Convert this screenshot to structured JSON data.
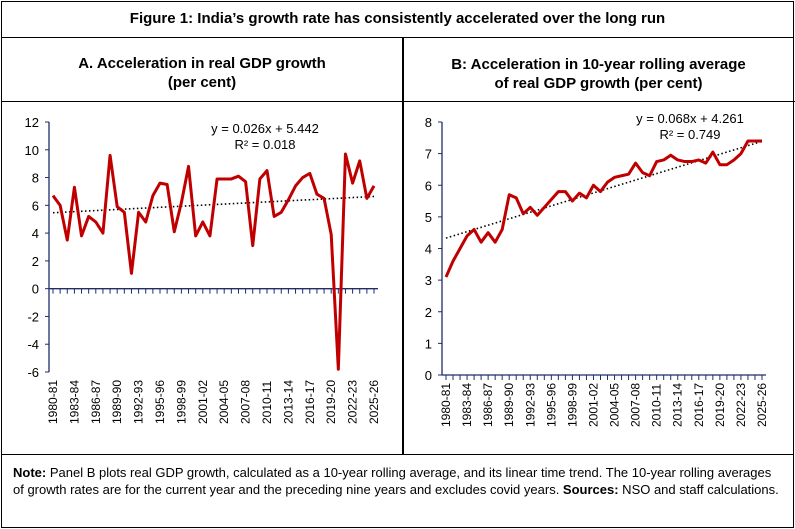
{
  "figure_title": "Figure 1: India’s growth rate has consistently accelerated over the long run",
  "note": {
    "note_label": "Note:",
    "note_text": " Panel B plots real GDP growth, calculated as a 10-year rolling average, and its linear time trend. The 10-year rolling averages of growth rates are for the current year and the preceding nine years and excludes covid years. ",
    "sources_label": "Sources:",
    "sources_text": " NSO and staff calculations."
  },
  "colors": {
    "series": "#C00000",
    "axis": "#1F2D6B",
    "trend": "#000000"
  },
  "chart_data": [
    {
      "type": "line",
      "title_line1": "A.  Acceleration in real GDP growth",
      "title_line2": "(per cent)",
      "ylim": [
        -6,
        12
      ],
      "yticks": [
        -6,
        -4,
        -2,
        0,
        2,
        4,
        6,
        8,
        10,
        12
      ],
      "grid": false,
      "equation": "y = 0.026x + 5.442",
      "r2": "R² = 0.018",
      "trend": {
        "slope": 0.026,
        "intercept": 5.442
      },
      "xtick_labels": [
        "1980-81",
        "1983-84",
        "1986-87",
        "1989-90",
        "1992-93",
        "1995-96",
        "1998-99",
        "2001-02",
        "2004-05",
        "2007-08",
        "2010-11",
        "2013-14",
        "2016-17",
        "2019-20",
        "2022-23",
        "2025-26"
      ],
      "values": [
        6.7,
        6.0,
        3.5,
        7.3,
        3.8,
        5.2,
        4.8,
        4.0,
        9.6,
        5.9,
        5.5,
        1.1,
        5.5,
        4.8,
        6.7,
        7.6,
        7.5,
        4.1,
        6.2,
        8.8,
        3.8,
        4.8,
        3.8,
        7.9,
        7.9,
        7.9,
        8.1,
        7.7,
        3.1,
        7.9,
        8.5,
        5.2,
        5.5,
        6.4,
        7.4,
        8.0,
        8.3,
        6.8,
        6.5,
        3.9,
        -5.8,
        9.7,
        7.6,
        9.2,
        6.5,
        7.4
      ]
    },
    {
      "type": "line",
      "title_line1": "B: Acceleration in 10-year rolling average",
      "title_line2": "of real GDP growth (per cent)",
      "ylim": [
        0,
        8
      ],
      "yticks": [
        0,
        1,
        2,
        3,
        4,
        5,
        6,
        7,
        8
      ],
      "grid": false,
      "equation": "y = 0.068x + 4.261",
      "r2": "R² = 0.749",
      "trend": {
        "slope": 0.068,
        "intercept": 4.261
      },
      "xtick_labels": [
        "1980-81",
        "1983-84",
        "1986-87",
        "1989-90",
        "1992-93",
        "1995-96",
        "1998-99",
        "2001-02",
        "2004-05",
        "2007-08",
        "2010-11",
        "2013-14",
        "2016-17",
        "2019-20",
        "2022-23",
        "2025-26"
      ],
      "values": [
        3.1,
        3.6,
        4.0,
        4.4,
        4.6,
        4.2,
        4.5,
        4.2,
        4.6,
        5.7,
        5.6,
        5.1,
        5.3,
        5.05,
        5.3,
        5.55,
        5.8,
        5.8,
        5.5,
        5.75,
        5.6,
        6.0,
        5.8,
        6.1,
        6.25,
        6.3,
        6.35,
        6.7,
        6.4,
        6.3,
        6.75,
        6.8,
        6.95,
        6.8,
        6.75,
        6.75,
        6.8,
        6.7,
        7.05,
        6.65,
        6.65,
        6.8,
        7.0,
        7.4,
        7.4,
        7.4
      ]
    }
  ]
}
